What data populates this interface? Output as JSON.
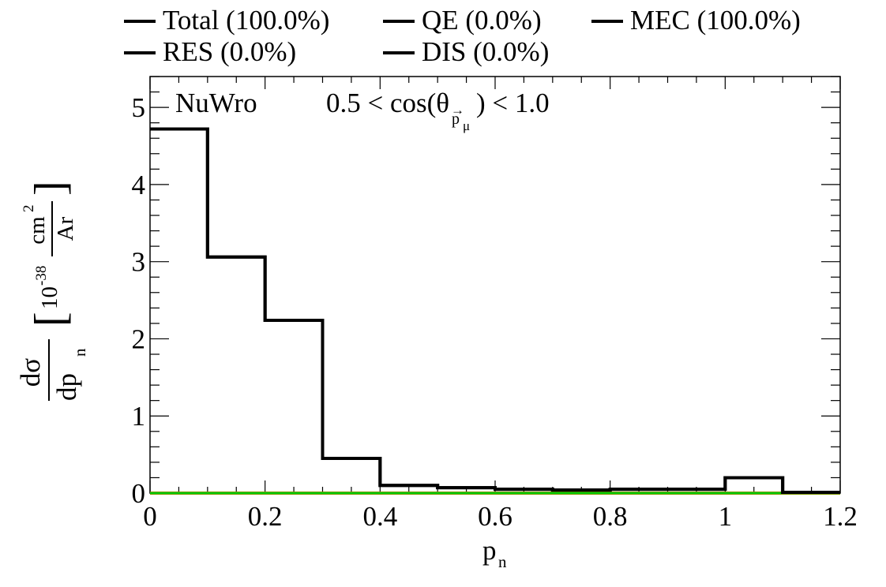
{
  "chart_data": {
    "type": "line",
    "generator": "NuWro",
    "cut_label": {
      "prefix": "0.5 < cos(θ",
      "sub_arrow": "→",
      "sub_p": "p",
      "sub_mu": "μ",
      "suffix": ") < 1.0"
    },
    "xlabel": {
      "main": "p",
      "sub": "n"
    },
    "ylabel": {
      "num_left": "dσ",
      "den_left": "dp",
      "den_sub": "n",
      "unit_prefix": "10",
      "unit_exp": "-38",
      "unit_num": "cm",
      "unit_num_exp": "2",
      "unit_den": "Ar",
      "bracket_left": "[",
      "bracket_right": "]"
    },
    "xlim": [
      0,
      1.2
    ],
    "ylim": [
      0,
      5.4
    ],
    "x_ticks": [
      0,
      0.2,
      0.4,
      0.6,
      0.8,
      1,
      1.2
    ],
    "x_tick_labels": [
      "0",
      "0.2",
      "0.4",
      "0.6",
      "0.8",
      "1",
      "1.2"
    ],
    "y_ticks": [
      0,
      1,
      2,
      3,
      4,
      5
    ],
    "y_tick_labels": [
      "0",
      "1",
      "2",
      "3",
      "4",
      "5"
    ],
    "bin_edges": [
      0,
      0.1,
      0.2,
      0.3,
      0.4,
      0.5,
      0.6,
      0.7,
      0.8,
      0.9,
      1.0,
      1.1,
      1.2
    ],
    "series": [
      {
        "name": "Total",
        "legend": "Total (100.0%)",
        "color": "#000000",
        "values": [
          4.72,
          3.06,
          2.24,
          0.45,
          0.1,
          0.07,
          0.05,
          0.04,
          0.05,
          0.05,
          0.2,
          0.01
        ]
      },
      {
        "name": "QE",
        "legend": "QE (0.0%)",
        "color": "#0000ff",
        "values": [
          0,
          0,
          0,
          0,
          0,
          0,
          0,
          0,
          0,
          0,
          0,
          0
        ]
      },
      {
        "name": "MEC",
        "legend": "MEC (100.0%)",
        "color": "#cc0000",
        "values": [
          4.72,
          3.06,
          2.24,
          0.45,
          0.1,
          0.07,
          0.05,
          0.04,
          0.05,
          0.05,
          0.2,
          0.01
        ]
      },
      {
        "name": "RES",
        "legend": "RES (0.0%)",
        "color": "#ff6600",
        "values": [
          0,
          0,
          0,
          0,
          0,
          0,
          0,
          0,
          0,
          0,
          0,
          0
        ]
      },
      {
        "name": "DIS",
        "legend": "DIS (0.0%)",
        "color": "#00cc00",
        "values": [
          0,
          0,
          0,
          0,
          0,
          0,
          0,
          0,
          0,
          0,
          0,
          0
        ]
      }
    ],
    "legend_line_color": "#000000",
    "grid": false,
    "legend_position": "top"
  }
}
